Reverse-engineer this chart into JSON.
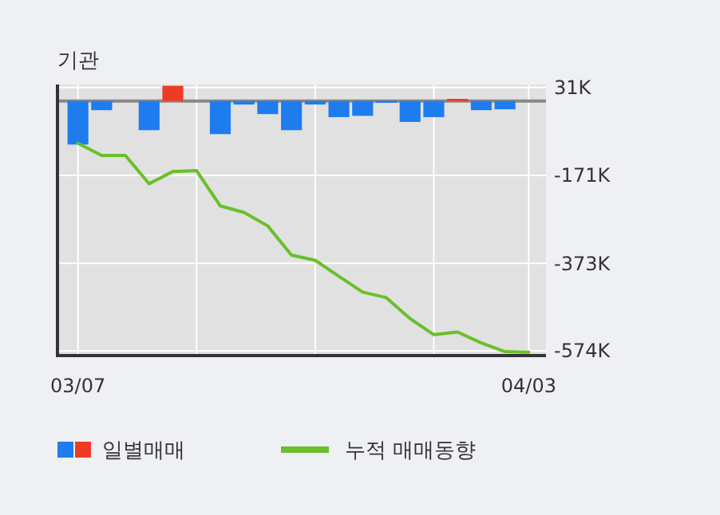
{
  "chart_data": {
    "type": "bar",
    "title": "기관",
    "categories": [
      "03/07",
      null,
      null,
      null,
      null,
      null,
      null,
      null,
      null,
      null,
      null,
      null,
      null,
      null,
      null,
      null,
      null,
      null,
      null,
      "04/03"
    ],
    "series": [
      {
        "name": "일별매매",
        "colors": [
          "#1e7cef",
          "#1e7cef",
          null,
          "#1e7cef",
          "#ef3a24",
          null,
          "#1e7cef",
          "#1e7cef",
          "#1e7cef",
          "#1e7cef",
          "#1e7cef",
          "#1e7cef",
          "#1e7cef",
          "#1e7cef",
          "#1e7cef",
          "#1e7cef",
          "#ef3a24",
          "#1e7cef",
          "#1e7cef",
          null
        ],
        "values": [
          -100,
          -21,
          null,
          -67,
          35,
          null,
          -76,
          -8,
          -30,
          -67,
          -8,
          -37,
          -34,
          -4,
          -48,
          -37,
          5,
          -21,
          -19,
          null
        ]
      },
      {
        "name": "누적 매매동향",
        "type": "line",
        "color": "#6abf2a",
        "values": [
          -97,
          -125,
          -125,
          -190,
          -162,
          -160,
          -241,
          -256,
          -287,
          -354,
          -366,
          -403,
          -439,
          -452,
          -500,
          -537,
          -531,
          -556,
          -576,
          -577
        ]
      }
    ],
    "ylim": [
      -585,
      38
    ],
    "yticks": [
      {
        "value": 31,
        "label": "31K"
      },
      {
        "value": -171,
        "label": "-171K"
      },
      {
        "value": -373,
        "label": "-373K"
      },
      {
        "value": -574,
        "label": "-574K"
      }
    ],
    "ref_lines": [
      {
        "axis": "y",
        "value": 0,
        "label": null,
        "color": "#888888"
      }
    ],
    "grid": true,
    "legend": "bottom",
    "marker": "none",
    "line_style": "solid"
  }
}
